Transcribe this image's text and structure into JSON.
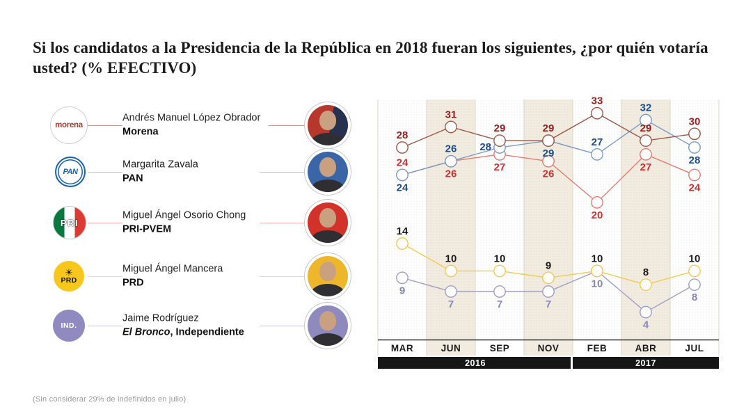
{
  "title": "Si los candidatos a la Presidencia de la República en 2018 fueran los siguientes, ¿por quién votaría usted? (% EFECTIVO)",
  "footnote": "(Sin considerar 29% de indefinidos en julio)",
  "candidates": [
    {
      "name": "Andrés Manuel López Obrador",
      "party_em": "",
      "party_rest": "Morena",
      "logo_text": "morena"
    },
    {
      "name": "Margarita Zavala",
      "party_em": "",
      "party_rest": "PAN",
      "logo_text": "PAN"
    },
    {
      "name": "Miguel Ángel Osorio Chong",
      "party_em": "",
      "party_rest": "PRI-PVEM",
      "logo_text": "PRI"
    },
    {
      "name": "Miguel Ángel Mancera",
      "party_em": "",
      "party_rest": "PRD",
      "logo_text": "PRD"
    },
    {
      "name": "Jaime Rodríguez",
      "party_em": "El Bronco",
      "party_rest": ", Independiente",
      "logo_text": "IND."
    }
  ],
  "chart_data": {
    "type": "line",
    "categories": [
      "MAR",
      "JUN",
      "SEP",
      "NOV",
      "FEB",
      "ABR",
      "JUL"
    ],
    "year_groups": [
      {
        "label": "2016",
        "span": 4
      },
      {
        "label": "2017",
        "span": 3
      }
    ],
    "series": [
      {
        "name": "Morena",
        "values": [
          28,
          31,
          29,
          29,
          33,
          29,
          30
        ],
        "line_color": "#9d5747",
        "label_color": "#9a1f1f"
      },
      {
        "name": "PAN",
        "values": [
          24,
          26,
          28,
          29,
          27,
          32,
          28
        ],
        "line_color": "#7b9cc4",
        "label_color": "#1d4c94"
      },
      {
        "name": "PRI-PVEM",
        "values": [
          24,
          26,
          27,
          26,
          20,
          27,
          24
        ],
        "line_color": "#ea7a72",
        "label_color": "#d42e2e"
      },
      {
        "name": "PRD",
        "values": [
          14,
          10,
          10,
          9,
          10,
          8,
          10
        ],
        "line_color": "#f3ca4e",
        "label_color": "#1a1a1a"
      },
      {
        "name": "El Bronco",
        "values": [
          9,
          7,
          7,
          7,
          10,
          4,
          8
        ],
        "line_color": "#9f9dca",
        "label_color": "#8785bd"
      }
    ],
    "ylim": [
      0,
      35
    ],
    "grid": "fine-dotted",
    "legend": "candidate-list-left",
    "colors": {
      "year_bar": "#161616",
      "column_shade": "#f1ecdf",
      "axis_line": "#2e2e2e"
    }
  }
}
